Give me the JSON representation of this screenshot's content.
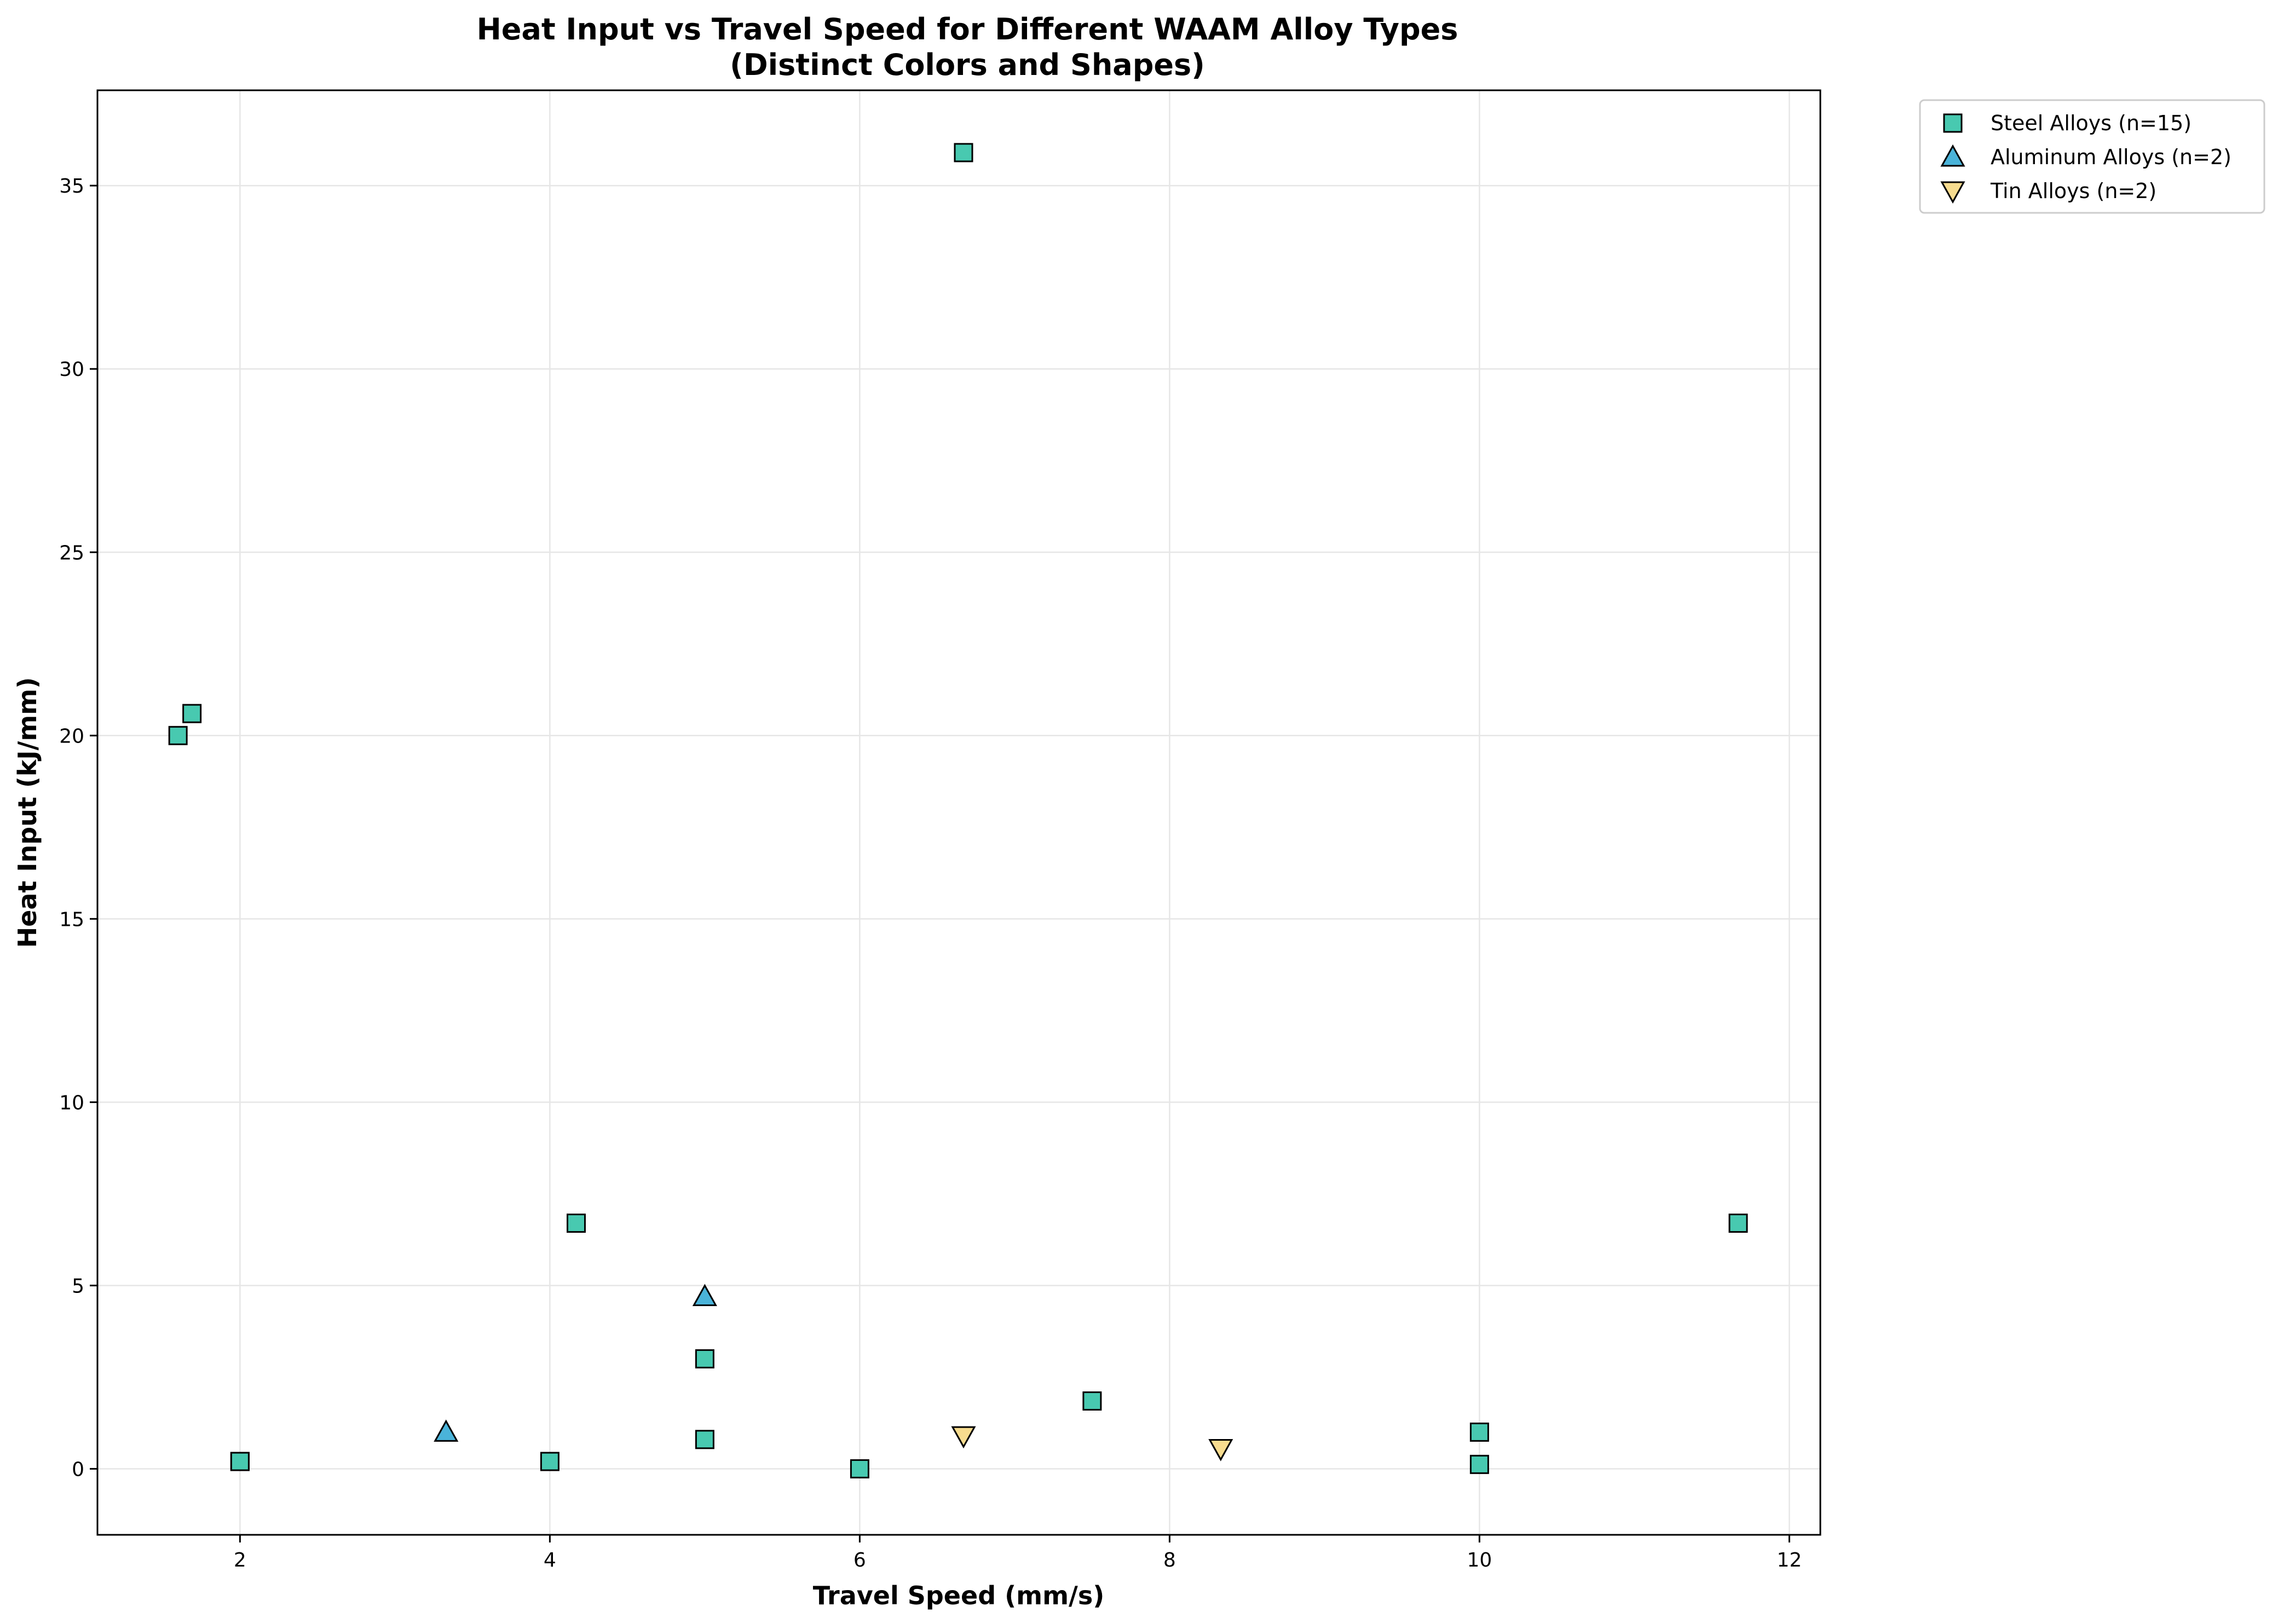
{
  "chart_data": {
    "type": "scatter",
    "title": "Heat Input vs Travel Speed for Different WAAM Alloy Types",
    "subtitle": "(Distinct Colors and Shapes)",
    "xlabel": "Travel Speed (mm/s)",
    "ylabel": "Heat Input (kJ/mm)",
    "xlim": [
      1.08,
      12.2
    ],
    "ylim": [
      -1.8,
      37.6
    ],
    "xticks": [
      2,
      4,
      6,
      8,
      10,
      12
    ],
    "yticks": [
      0,
      5,
      10,
      15,
      20,
      25,
      30,
      35
    ],
    "grid": true,
    "legend_position": "outside-top-right",
    "series": [
      {
        "name": "Steel Alloys (n=15)",
        "marker": "square",
        "color": "#48c9b0",
        "points": [
          {
            "x": 1.6,
            "y": 20.0
          },
          {
            "x": 1.69,
            "y": 20.6
          },
          {
            "x": 2.0,
            "y": 0.2
          },
          {
            "x": 2.0,
            "y": 0.2
          },
          {
            "x": 4.0,
            "y": 0.2
          },
          {
            "x": 4.17,
            "y": 6.7
          },
          {
            "x": 5.0,
            "y": 3.0
          },
          {
            "x": 5.0,
            "y": 0.8
          },
          {
            "x": 6.0,
            "y": 0.0
          },
          {
            "x": 6.67,
            "y": 35.9
          },
          {
            "x": 7.5,
            "y": 1.85
          },
          {
            "x": 10.0,
            "y": 1.0
          },
          {
            "x": 10.0,
            "y": 0.12
          },
          {
            "x": 11.67,
            "y": 6.7
          },
          {
            "x": 2.0,
            "y": 0.2
          }
        ]
      },
      {
        "name": "Aluminum Alloys (n=2)",
        "marker": "triangle-up",
        "color": "#4ab3d9",
        "points": [
          {
            "x": 3.33,
            "y": 1.0
          },
          {
            "x": 5.0,
            "y": 4.7
          }
        ]
      },
      {
        "name": "Tin Alloys (n=2)",
        "marker": "triangle-down",
        "color": "#f7dc8f",
        "points": [
          {
            "x": 6.67,
            "y": 0.9
          },
          {
            "x": 8.33,
            "y": 0.55
          }
        ]
      }
    ]
  }
}
